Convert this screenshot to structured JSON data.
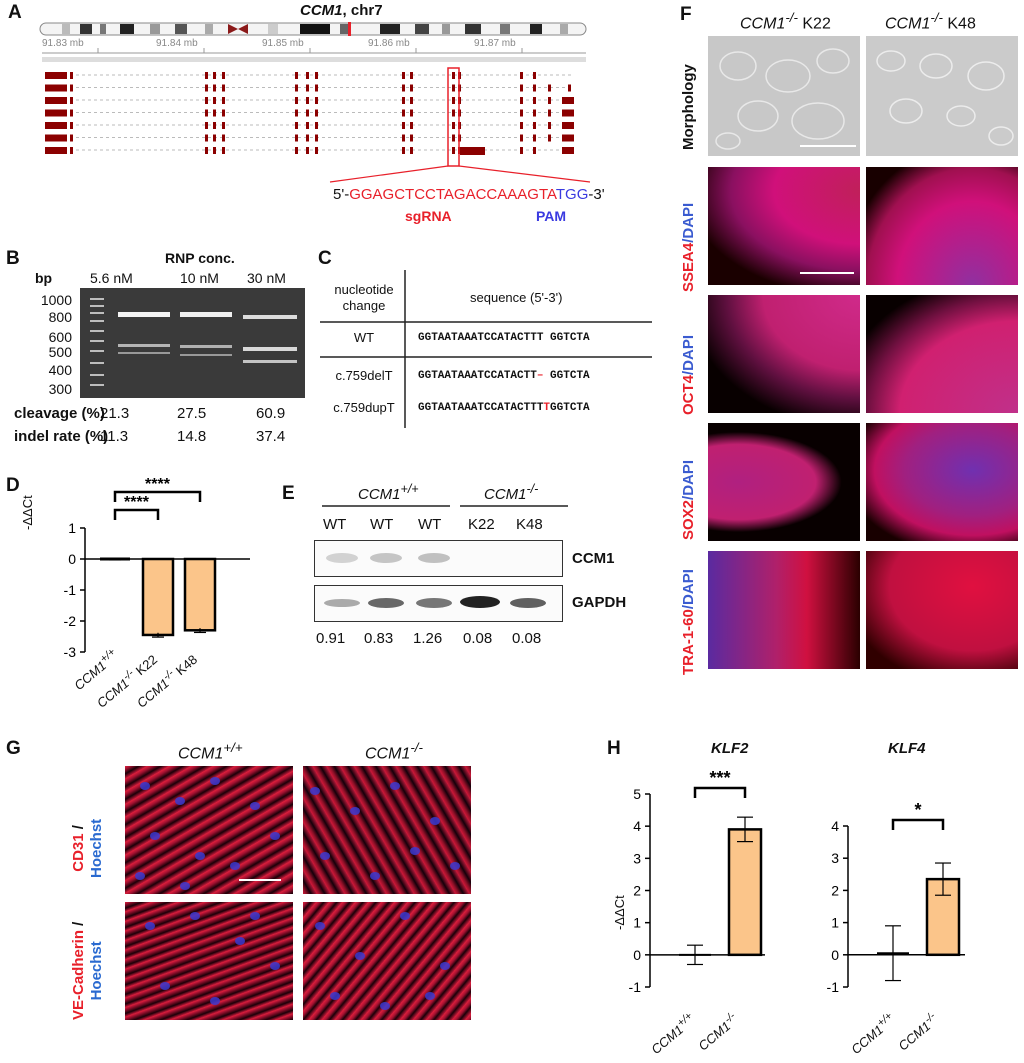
{
  "panel_labels": {
    "A": "A",
    "B": "B",
    "C": "C",
    "D": "D",
    "E": "E",
    "F": "F",
    "G": "G",
    "H": "H"
  },
  "A": {
    "title_gene": "CCM1",
    "title_rest": ", chr7",
    "ticks": [
      "91.83 mb",
      "91.84 mb",
      "91.85 mb",
      "91.86 mb",
      "91.87 mb"
    ],
    "seq_prefix": "5'-",
    "seq_sgrna": "GGAGCTCCTAGACCAAAGTA",
    "seq_pam": "TGG",
    "seq_suffix": "-3'",
    "sgrna_label": "sgRNA",
    "pam_label": "PAM",
    "colors": {
      "exon": "#8b0000",
      "sgrna": "#e8202a",
      "pam": "#3a3ae0"
    }
  },
  "B": {
    "header": "RNP conc.",
    "bp_label": "bp",
    "concentrations": [
      "5.6 nM",
      "10 nM",
      "30 nM"
    ],
    "ladder": [
      "1000",
      "800",
      "600",
      "500",
      "400",
      "300"
    ],
    "cleavage_label": "cleavage (%)",
    "cleavage": [
      "21.3",
      "27.5",
      "60.9"
    ],
    "indel_label": "indel rate (%)",
    "indel": [
      "11.3",
      "14.8",
      "37.4"
    ]
  },
  "C": {
    "col1_header_line1": "nucleotide",
    "col1_header_line2": "change",
    "col2_header": "sequence (5'-3')",
    "rows": [
      {
        "change": "WT",
        "seq_a": "GGTAATAAATCCATACTTT",
        "mark": "",
        "seq_b": " GGTCTA"
      },
      {
        "change": "c.759delT",
        "seq_a": "GGTAATAAATCCATACTT",
        "mark": "–",
        "seq_b": " GGTCTA"
      },
      {
        "change": "c.759dupT",
        "seq_a": "GGTAATAAATCCATACTTT",
        "mark": "T",
        "seq_b": "GGTCTA"
      }
    ]
  },
  "D": {
    "ylabel": "-ΔΔCt",
    "yticks": [
      "1",
      "0",
      "-1",
      "-2",
      "-3"
    ],
    "sig1": "****",
    "sig2": "****",
    "categories": [
      "CCM1+/+",
      "CCM1-/- K22",
      "CCM1-/- K48"
    ],
    "cat_base": [
      "CCM1",
      "CCM1",
      "CCM1"
    ],
    "cat_sup": [
      "+/+",
      "-/-",
      "-/-"
    ],
    "cat_tail": [
      "",
      " K22",
      " K48"
    ]
  },
  "E": {
    "group1": "CCM1",
    "group1_sup": "+/+",
    "group2": "CCM1",
    "group2_sup": "-/-",
    "lanes": [
      "WT",
      "WT",
      "WT",
      "K22",
      "K48"
    ],
    "band1": "CCM1",
    "band2": "GAPDH",
    "ratios": [
      "0.91",
      "0.83",
      "1.26",
      "0.08",
      "0.08"
    ]
  },
  "F": {
    "col1": "CCM1",
    "col1_sup": "-/-",
    "col1_tail": " K22",
    "col2": "CCM1",
    "col2_sup": "-/-",
    "col2_tail": " K48",
    "rows": [
      {
        "red": "Morphology",
        "blue": ""
      },
      {
        "red": "SSEA4",
        "blue": "/DAPI"
      },
      {
        "red": "OCT4",
        "blue": "/DAPI"
      },
      {
        "red": "SOX2",
        "blue": "/DAPI"
      },
      {
        "red": "TRA-1-60",
        "blue": "/DAPI"
      }
    ]
  },
  "G": {
    "col1": "CCM1",
    "col1_sup": "+/+",
    "col2": "CCM1",
    "col2_sup": "-/-",
    "row1_red": "CD31",
    "row1_sep": " / ",
    "row1_blue": "Hoechst",
    "row2_red": "VE-Cadherin",
    "row2_sep": " / ",
    "row2_blue": "Hoechst"
  },
  "H": {
    "ylabel": "-ΔΔCt",
    "cat_base": [
      "CCM1",
      "CCM1"
    ],
    "cat_sup": [
      "+/+",
      "-/-"
    ],
    "plots": [
      {
        "title": "KLF2",
        "sig": "***",
        "yticks": [
          "5",
          "4",
          "3",
          "2",
          "1",
          "0",
          "-1"
        ]
      },
      {
        "title": "KLF4",
        "sig": "*",
        "yticks": [
          "4",
          "3",
          "2",
          "1",
          "0",
          "-1"
        ]
      }
    ]
  },
  "chart_data": [
    {
      "type": "bar",
      "panel": "D",
      "categories": [
        "CCM1+/+",
        "CCM1-/- K22",
        "CCM1-/- K48"
      ],
      "values": [
        0.0,
        -2.45,
        -2.3
      ],
      "errors": [
        0.03,
        0.07,
        0.07
      ],
      "ylabel": "-ΔΔCt",
      "ylim": [
        -3,
        1
      ],
      "significance": [
        {
          "pair": [
            0,
            1
          ],
          "label": "****"
        },
        {
          "pair": [
            0,
            2
          ],
          "label": "****"
        }
      ],
      "colors": {
        "control": "#444444",
        "knockout": "#fbc58a"
      }
    },
    {
      "type": "bar",
      "panel": "H",
      "title": "KLF2",
      "categories": [
        "CCM1+/+",
        "CCM1-/-"
      ],
      "values": [
        0.0,
        3.9
      ],
      "errors": [
        0.3,
        0.38
      ],
      "ylabel": "-ΔΔCt",
      "ylim": [
        -1,
        5
      ],
      "significance": [
        {
          "pair": [
            0,
            1
          ],
          "label": "***"
        }
      ]
    },
    {
      "type": "bar",
      "panel": "H",
      "title": "KLF4",
      "categories": [
        "CCM1+/+",
        "CCM1-/-"
      ],
      "values": [
        0.05,
        2.35
      ],
      "errors": [
        0.85,
        0.5
      ],
      "ylabel": "-ΔΔCt",
      "ylim": [
        -1,
        4
      ],
      "significance": [
        {
          "pair": [
            0,
            1
          ],
          "label": "*"
        }
      ]
    }
  ]
}
